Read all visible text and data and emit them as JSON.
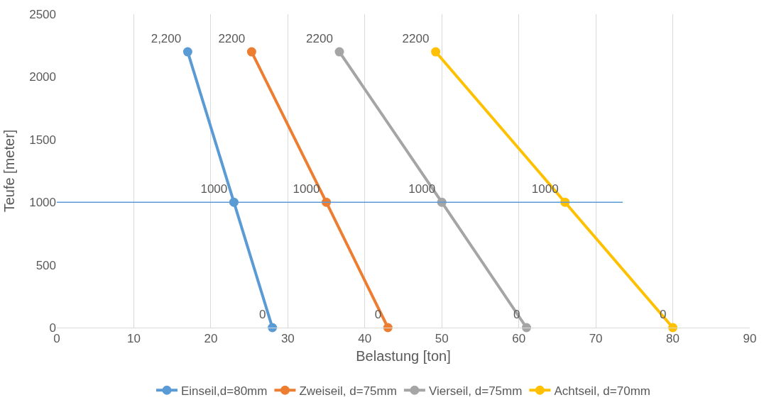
{
  "chart_data": {
    "type": "line",
    "xlabel": "Belastung [ton]",
    "ylabel": "Teufe [meter]",
    "xlim": [
      0,
      90
    ],
    "xticks": [
      0,
      10,
      20,
      30,
      40,
      50,
      60,
      70,
      80,
      90
    ],
    "ylim": [
      0,
      2500
    ],
    "yticks": [
      0,
      500,
      1000,
      1500,
      2000,
      2500
    ],
    "grid": "x",
    "legend": "bottom",
    "marker": "circle",
    "line_style": "solid",
    "series": [
      {
        "name": "Einseil,d=80mm",
        "color": "#5b9bd5",
        "x": [
          17,
          23,
          28
        ],
        "values": [
          2200,
          1000,
          0
        ],
        "value_labels": [
          "2,200",
          "1000",
          "0"
        ]
      },
      {
        "name": "Zweiseil, d=75mm",
        "color": "#ed7d31",
        "x": [
          25.3,
          35,
          43
        ],
        "values": [
          2200,
          1000,
          0
        ],
        "value_labels": [
          "2200",
          "1000",
          "0"
        ]
      },
      {
        "name": "Vierseil, d=75mm",
        "color": "#a5a5a5",
        "x": [
          36.7,
          50,
          61
        ],
        "values": [
          2200,
          1000,
          0
        ],
        "value_labels": [
          "2200",
          "1000",
          "0"
        ]
      },
      {
        "name": "Achtseil, d=70mm",
        "color": "#ffc000",
        "x": [
          49.2,
          66,
          80
        ],
        "values": [
          2200,
          1000,
          0
        ],
        "value_labels": [
          "2200",
          "1000",
          "0"
        ]
      },
      {
        "color": "#5b9bd5",
        "x": [
          0,
          73.5
        ],
        "values": [
          1000,
          1000
        ],
        "marker": "none"
      }
    ]
  }
}
